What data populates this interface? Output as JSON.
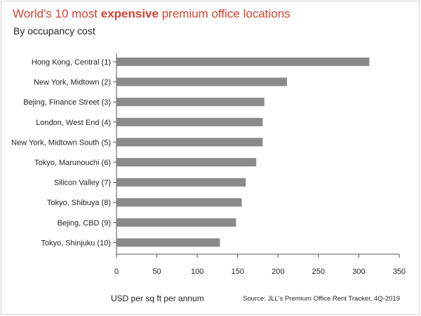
{
  "header": {
    "title_part1": "World's 10 most ",
    "title_bold": "expensive",
    "title_part2": " premium office locations",
    "subtitle": "By occupancy cost"
  },
  "footer": {
    "xlabel": "USD per sq ft per annum",
    "source": "Source: JLL's Premium Office Rent Tracker, 4Q-2019"
  },
  "colors": {
    "title": "#d8412f",
    "bar": "#8a8a8a",
    "axis": "#555555"
  },
  "chart_data": {
    "type": "bar",
    "orientation": "horizontal",
    "title": "World's 10 most expensive premium office locations",
    "subtitle": "By occupancy cost",
    "xlabel": "USD per sq ft per annum",
    "ylabel": "",
    "categories": [
      "Hong Kong, Central (1)",
      "New York, Midtown (2)",
      "Bejing, Finance Street (3)",
      "London, West End (4)",
      "New York, Midtown South (5)",
      "Tokyo, Marunouchi (6)",
      "Silicon Valley (7)",
      "Tokyo, Shibuya (8)",
      "Bejing, CBD (9)",
      "Tokyo, Shinjuku (10)"
    ],
    "values": [
      313,
      211,
      183,
      181,
      181,
      173,
      160,
      155,
      148,
      128
    ],
    "xlim": [
      0,
      350
    ],
    "xticks": [
      0,
      50,
      100,
      150,
      200,
      250,
      300,
      350
    ],
    "grid": false,
    "legend": "none"
  }
}
